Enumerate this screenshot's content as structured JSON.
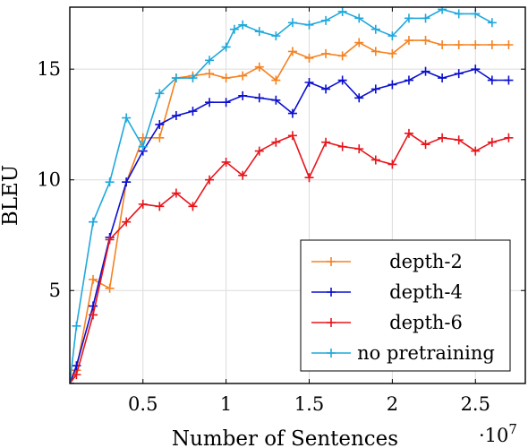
{
  "chart_data": {
    "type": "line",
    "title": "",
    "xlabel": "Number of Sentences",
    "ylabel": "BLEU",
    "x_exponent_label": "·10",
    "x_exponent_power": "7",
    "x_scale": 10000000,
    "xlim": [
      0.06,
      2.8
    ],
    "ylim": [
      0.8,
      17.8
    ],
    "x_ticks": [
      0.5,
      1,
      1.5,
      2,
      2.5
    ],
    "x_tick_labels": [
      "0.5",
      "1",
      "1.5",
      "2",
      "2.5"
    ],
    "y_ticks": [
      5,
      10,
      15
    ],
    "y_tick_labels": [
      "5",
      "10",
      "15"
    ],
    "grid": true,
    "legend_position": "bottom-right",
    "x": [
      0.06,
      0.1,
      0.15,
      0.2,
      0.25,
      0.3,
      0.35,
      0.4,
      0.45,
      0.5,
      0.55,
      0.6,
      0.65,
      0.7,
      0.75,
      0.8,
      0.85,
      0.9,
      0.95,
      1.0,
      1.05,
      1.1,
      1.15,
      1.2,
      1.25,
      1.3,
      1.35,
      1.4,
      1.45,
      1.5,
      1.55,
      1.6,
      1.65,
      1.7,
      1.75,
      1.8,
      1.85,
      1.9,
      1.95,
      2.0,
      2.05,
      2.1,
      2.15,
      2.2,
      2.25,
      2.3,
      2.35,
      2.4,
      2.45,
      2.5,
      2.55,
      2.6,
      2.65,
      2.7,
      2.75,
      2.8
    ],
    "series": [
      {
        "name": "depth-2",
        "color": "#f58220",
        "x": [
          0.06,
          0.1,
          0.2,
          0.3,
          0.4,
          0.5,
          0.6,
          0.7,
          0.8,
          0.9,
          1.0,
          1.1,
          1.2,
          1.3,
          1.4,
          1.5,
          1.6,
          1.7,
          1.8,
          1.9,
          2.0,
          2.1,
          2.2,
          2.3,
          2.4,
          2.5,
          2.6,
          2.7
        ],
        "values": [
          0.8,
          1.4,
          5.5,
          5.1,
          9.9,
          11.9,
          11.9,
          14.6,
          14.7,
          14.8,
          14.6,
          14.7,
          15.1,
          14.5,
          15.8,
          15.5,
          15.7,
          15.6,
          16.2,
          15.8,
          15.7,
          16.3,
          16.3,
          16.1,
          16.1,
          16.1,
          16.1,
          16.1
        ]
      },
      {
        "name": "depth-4",
        "color": "#0b0fcf",
        "x": [
          0.06,
          0.1,
          0.2,
          0.3,
          0.4,
          0.5,
          0.6,
          0.7,
          0.8,
          0.9,
          1.0,
          1.1,
          1.2,
          1.3,
          1.4,
          1.5,
          1.6,
          1.7,
          1.8,
          1.9,
          2.0,
          2.1,
          2.2,
          2.3,
          2.4,
          2.5,
          2.6,
          2.7
        ],
        "values": [
          0.8,
          1.6,
          4.3,
          7.4,
          9.9,
          11.3,
          12.5,
          12.9,
          13.1,
          13.5,
          13.5,
          13.8,
          13.7,
          13.6,
          13.0,
          14.4,
          14.1,
          14.5,
          13.7,
          14.1,
          14.3,
          14.5,
          14.9,
          14.6,
          14.8,
          15.0,
          14.5,
          14.5
        ]
      },
      {
        "name": "depth-6",
        "color": "#e8151c",
        "x": [
          0.06,
          0.1,
          0.2,
          0.3,
          0.4,
          0.5,
          0.6,
          0.7,
          0.8,
          0.9,
          1.0,
          1.1,
          1.2,
          1.3,
          1.4,
          1.5,
          1.6,
          1.7,
          1.8,
          1.9,
          2.0,
          2.1,
          2.2,
          2.3,
          2.4,
          2.5,
          2.6,
          2.7
        ],
        "values": [
          0.8,
          1.2,
          3.9,
          7.3,
          8.1,
          8.9,
          8.8,
          9.4,
          8.8,
          10.0,
          10.8,
          10.2,
          11.3,
          11.7,
          12.0,
          10.1,
          11.7,
          11.5,
          11.4,
          10.9,
          10.7,
          12.1,
          11.6,
          11.9,
          11.8,
          11.3,
          11.7,
          11.9
        ]
      },
      {
        "name": "no pretraining",
        "color": "#1fa8dc",
        "x": [
          0.06,
          0.1,
          0.2,
          0.3,
          0.4,
          0.5,
          0.6,
          0.7,
          0.8,
          0.9,
          1.0,
          1.05,
          1.1,
          1.2,
          1.3,
          1.4,
          1.5,
          1.6,
          1.7,
          1.8,
          1.9,
          2.0,
          2.1,
          2.2,
          2.3,
          2.4,
          2.5,
          2.6
        ],
        "values": [
          0.8,
          3.4,
          8.1,
          9.9,
          12.8,
          11.5,
          13.9,
          14.6,
          14.6,
          15.4,
          16.0,
          16.8,
          17.0,
          16.7,
          16.5,
          17.1,
          17.0,
          17.2,
          17.6,
          17.3,
          16.8,
          16.5,
          17.3,
          17.3,
          17.7,
          17.5,
          17.5,
          17.1
        ]
      }
    ],
    "legend": [
      "depth-2",
      "depth-4",
      "depth-6",
      "no pretraining"
    ]
  }
}
